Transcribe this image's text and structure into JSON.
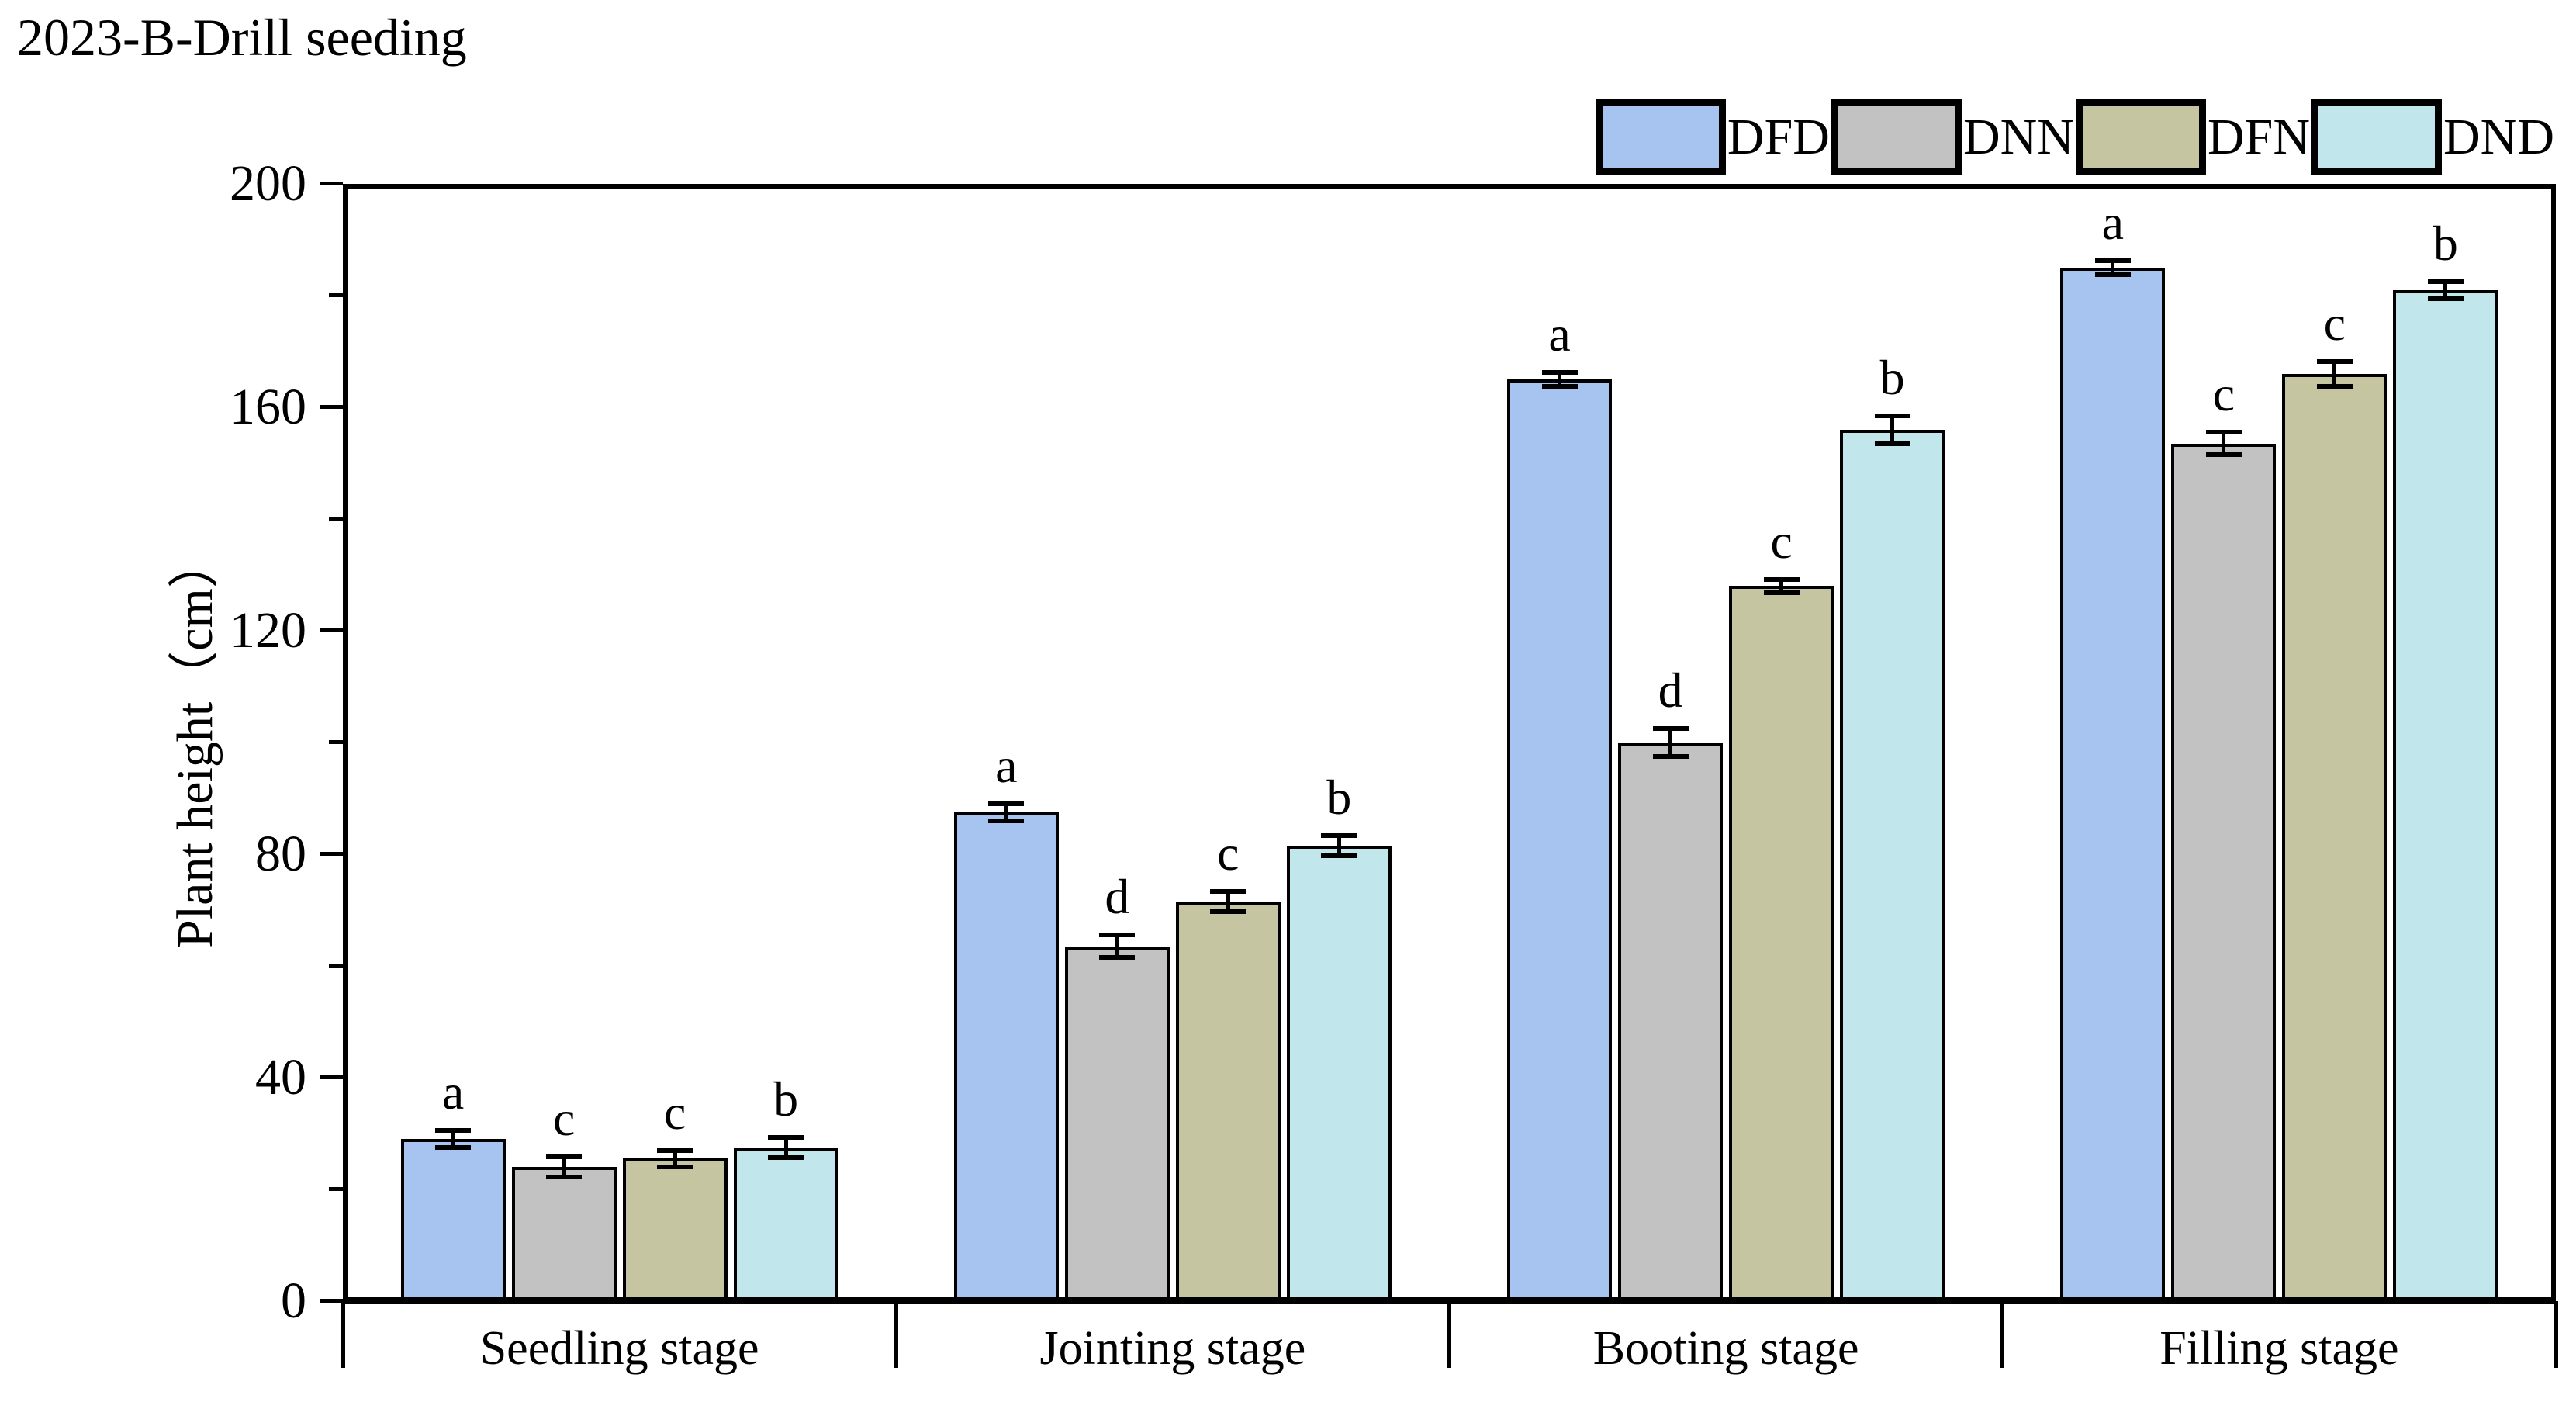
{
  "title": "2023-B-Drill seeding",
  "chart_data": {
    "type": "bar",
    "title": "2023-B-Drill seeding",
    "xlabel": "",
    "ylabel": "Plant height（cm）",
    "ylim": [
      0,
      200
    ],
    "ytick_major": [
      0,
      40,
      80,
      120,
      160,
      200
    ],
    "ytick_minor": [
      20,
      60,
      100,
      140,
      180
    ],
    "grid": "off",
    "legend_position": "top-right",
    "categories": [
      "Seedling stage",
      "Jointing stage",
      "Booting stage",
      "Filling stage"
    ],
    "series": [
      {
        "name": "DFD",
        "color": "#a6c4ef",
        "values": [
          29,
          87.5,
          165,
          185
        ],
        "errors": [
          1.5,
          1.5,
          1.2,
          1.3
        ],
        "sig_letters": [
          "a",
          "a",
          "a",
          "a"
        ]
      },
      {
        "name": "DNN",
        "color": "#c2c2c2",
        "values": [
          24,
          63.5,
          100,
          153.5
        ],
        "errors": [
          1.8,
          2.0,
          2.5,
          2.0
        ],
        "sig_letters": [
          "c",
          "d",
          "d",
          "c"
        ]
      },
      {
        "name": "DFN",
        "color": "#c5c5a1",
        "values": [
          25.5,
          71.5,
          128,
          166
        ],
        "errors": [
          1.5,
          1.8,
          1.2,
          2.2
        ],
        "sig_letters": [
          "c",
          "c",
          "c",
          "c"
        ]
      },
      {
        "name": "DND",
        "color": "#c1e6ec",
        "values": [
          27.5,
          81.5,
          156,
          181
        ],
        "errors": [
          1.8,
          1.8,
          2.5,
          1.5
        ],
        "sig_letters": [
          "b",
          "b",
          "b",
          "b"
        ]
      }
    ],
    "bar_edge_color": "#000000",
    "axis_color": "#000000"
  }
}
